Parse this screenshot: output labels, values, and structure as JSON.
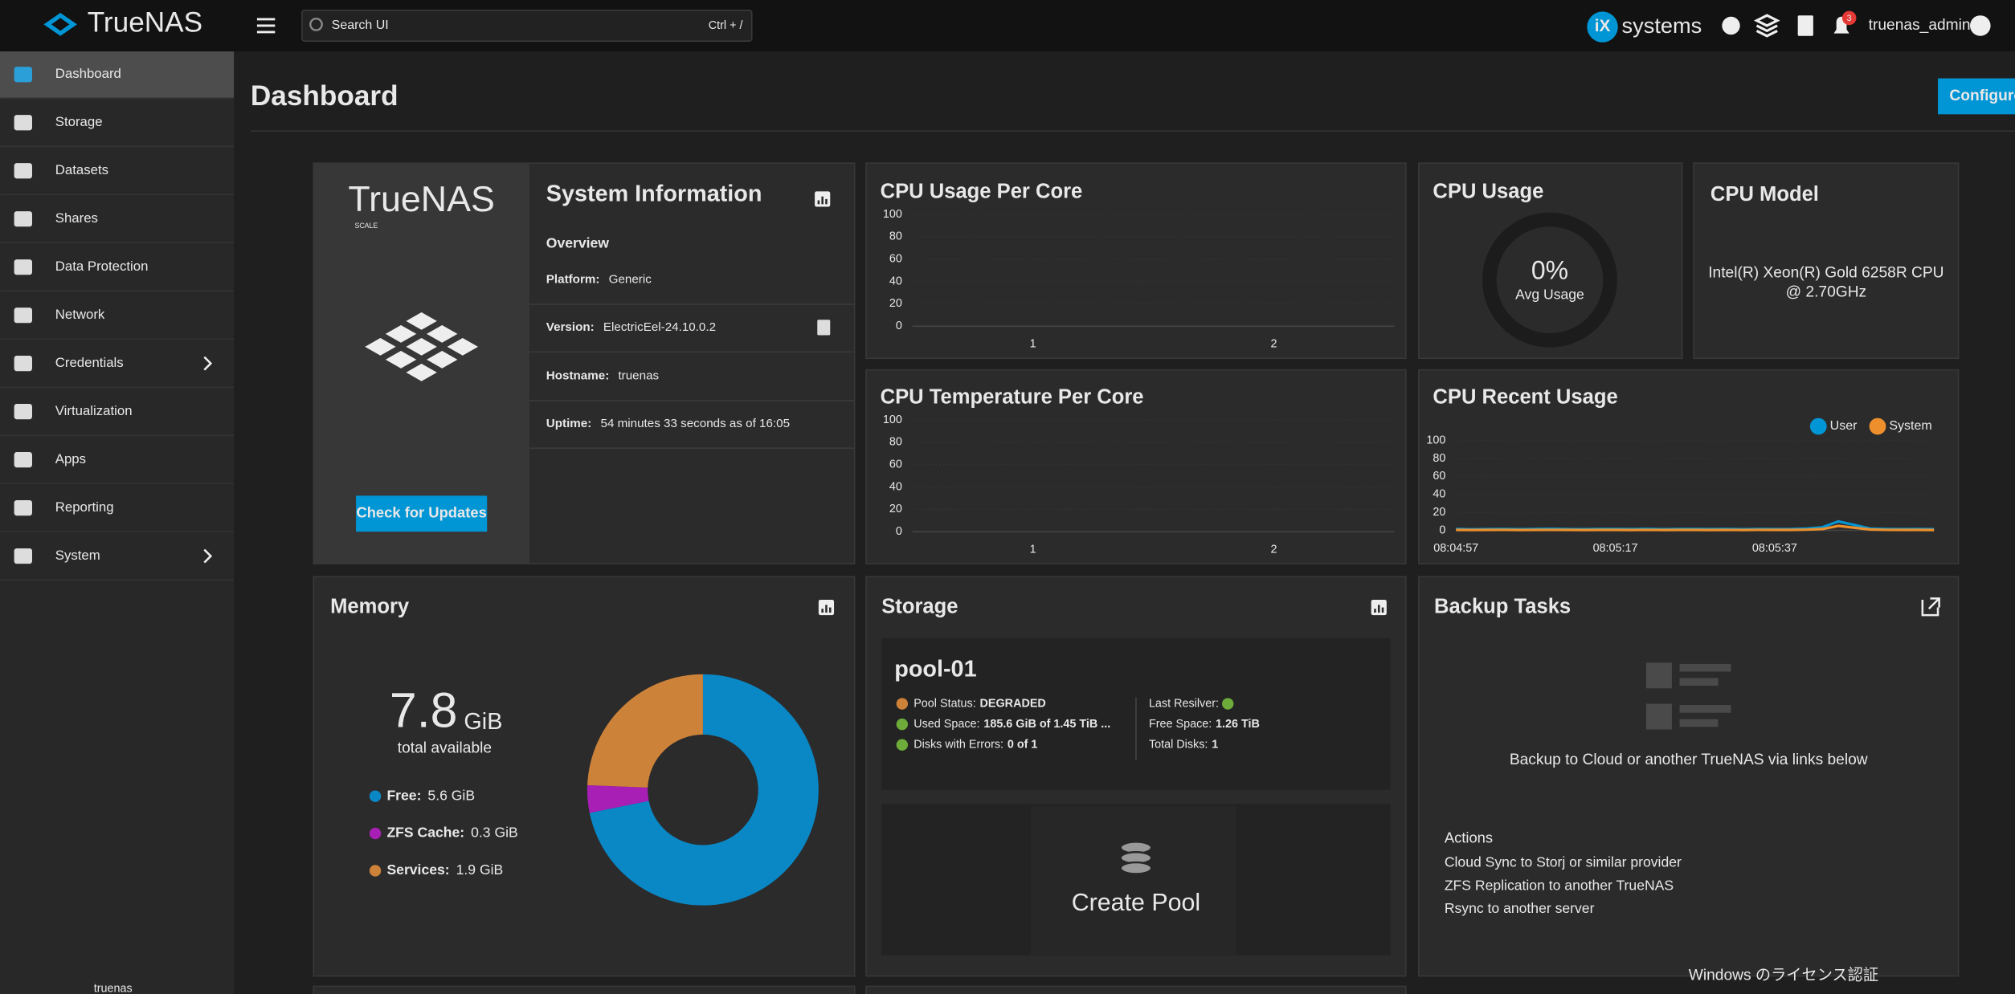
{
  "header": {
    "logo": "TrueNAS",
    "search_placeholder": "Search UI",
    "search_shortcut": "Ctrl + /",
    "brand_ix": "iX",
    "brand_systems": "systems",
    "notification_count": 3,
    "username": "truenas_admin"
  },
  "sidebar": {
    "items": [
      "Dashboard",
      "Storage",
      "Datasets",
      "Shares",
      "Data Protection",
      "Network",
      "Credentials",
      "Virtualization",
      "Apps",
      "Reporting",
      "System"
    ],
    "footer": "truenas"
  },
  "page": {
    "title": "Dashboard",
    "configure_button": "Configure"
  },
  "system_info": {
    "logo": "TrueNAS",
    "logo_sub": "SCALE",
    "title": "System Information",
    "overview": "Overview",
    "rows": [
      {
        "label": "Platform:",
        "value": "Generic"
      },
      {
        "label": "Version:",
        "value": "ElectricEel-24.10.0.2"
      },
      {
        "label": "Hostname:",
        "value": "truenas"
      },
      {
        "label": "Uptime:",
        "value": "54 minutes 33 seconds as of 16:05"
      }
    ],
    "button": "Check for Updates"
  },
  "cpu_per_core": {
    "type": "bar",
    "title": "CPU Usage Per Core",
    "categories": [
      "1",
      "2"
    ],
    "values": [
      0,
      0
    ],
    "color": "#0095d5",
    "ylim": [
      0,
      100
    ],
    "yticks": [
      0,
      20,
      40,
      60,
      80,
      100
    ],
    "grid": true
  },
  "cpu_usage": {
    "title": "CPU Usage",
    "value": 0,
    "value_label": "0%",
    "label": "Avg Usage",
    "color": "#0095d5"
  },
  "cpu_model": {
    "title": "CPU Model",
    "text": "Intel(R) Xeon(R) Gold 6258R CPU @ 2.70GHz"
  },
  "cpu_temperature": {
    "type": "line",
    "title": "CPU Temperature Per Core",
    "categories": [
      "1",
      "2"
    ],
    "ylim": [
      0,
      100
    ],
    "yticks": [
      0,
      20,
      40,
      60,
      80,
      100
    ],
    "grid": true
  },
  "cpu_recent": {
    "type": "line",
    "title": "CPU Recent Usage",
    "categories": [
      "08:04:57",
      null,
      null,
      null,
      null,
      null,
      null,
      null,
      null,
      null,
      "08:05:17",
      null,
      null,
      null,
      null,
      null,
      null,
      null,
      null,
      null,
      "08:05:37",
      null,
      null,
      null,
      null,
      null,
      null,
      null,
      null,
      null,
      null
    ],
    "series": [
      {
        "name": "User",
        "color": "#0095d5",
        "values": [
          1.5,
          1.2,
          1.4,
          1.6,
          1.3,
          1.5,
          1.8,
          1.4,
          1.3,
          1.6,
          1.5,
          1.4,
          1.7,
          1.3,
          1.5,
          1.6,
          1.4,
          1.5,
          1.3,
          1.6,
          1.4,
          1.5,
          2.0,
          3.5,
          10,
          6,
          2,
          1.6,
          1.4,
          1.5,
          1.3
        ]
      },
      {
        "name": "System",
        "color": "#ec8f2c",
        "values": [
          0.5,
          0.4,
          0.5,
          0.6,
          0.4,
          0.5,
          0.6,
          0.5,
          0.4,
          0.5,
          0.5,
          0.4,
          0.6,
          0.4,
          0.5,
          0.5,
          0.4,
          0.5,
          0.4,
          0.6,
          0.5,
          0.5,
          0.8,
          1.5,
          5,
          3,
          1,
          0.6,
          0.5,
          0.5,
          0.4
        ]
      }
    ],
    "ylim": [
      0,
      100
    ],
    "yticks": [
      0,
      20,
      40,
      60,
      80,
      100
    ],
    "grid": true
  },
  "memory": {
    "title": "Memory",
    "total": "7.8",
    "total_unit": "GiB",
    "total_label": "total available",
    "items": [
      {
        "name": "Free:",
        "value": 5.6,
        "value_label": "5.6 GiB",
        "color": "#0a87c5"
      },
      {
        "name": "ZFS Cache:",
        "value": 0.3,
        "value_label": "0.3 GiB",
        "color": "#a81fb5"
      },
      {
        "name": "Services:",
        "value": 1.9,
        "value_label": "1.9 GiB",
        "color": "#cd823a"
      }
    ]
  },
  "storage": {
    "title": "Storage",
    "pool_name": "pool-01",
    "left_rows": [
      {
        "label": "Pool Status:",
        "value": "DEGRADED"
      },
      {
        "label": "Used Space:",
        "value": "185.6 GiB of 1.45 TiB ..."
      },
      {
        "label": "Disks with Errors:",
        "value": "0 of 1"
      }
    ],
    "right_rows": [
      {
        "label": "Last Resilver:"
      },
      {
        "label": "Free Space:",
        "value": "1.26 TiB"
      },
      {
        "label": "Total Disks:",
        "value": "1"
      }
    ],
    "create_pool": "Create Pool"
  },
  "backup": {
    "title": "Backup Tasks",
    "message": "Backup to Cloud or another TrueNAS via links below",
    "actions_title": "Actions",
    "links": [
      "Cloud Sync to Storj or similar provider",
      "ZFS Replication to another TrueNAS",
      "Rsync to another server"
    ]
  },
  "watermark": "Windows のライセンス認証"
}
